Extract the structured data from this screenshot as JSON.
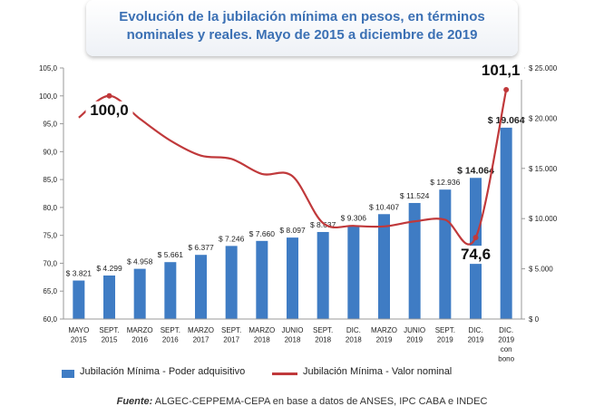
{
  "title": {
    "line1": "Evolución de la jubilación mínima en pesos, en términos",
    "line2": "nominales y reales. Mayo de 2015 a diciembre de 2019"
  },
  "chart_data": {
    "type": "bar+line",
    "categories": [
      [
        "MAYO",
        "2015"
      ],
      [
        "SEPT.",
        "2015"
      ],
      [
        "MARZO",
        "2016"
      ],
      [
        "SEPT.",
        "2016"
      ],
      [
        "MARZO",
        "2017"
      ],
      [
        "SEPT.",
        "2017"
      ],
      [
        "MARZO",
        "2018"
      ],
      [
        "JUNIO",
        "2018"
      ],
      [
        "SEPT.",
        "2018"
      ],
      [
        "DIC.",
        "2018"
      ],
      [
        "MARZO",
        "2019"
      ],
      [
        "JUNIO",
        "2019"
      ],
      [
        "SEPT.",
        "2019"
      ],
      [
        "DIC.",
        "2019"
      ],
      [
        "DIC.",
        "2019",
        "con",
        "bono"
      ]
    ],
    "left_axis": {
      "min": 60,
      "max": 105,
      "step": 5,
      "tick_labels": [
        "60,0",
        "65,0",
        "70,0",
        "75,0",
        "80,0",
        "85,0",
        "90,0",
        "95,0",
        "100,0",
        "105,0"
      ]
    },
    "right_axis": {
      "min": 0,
      "max": 25000,
      "step": 5000,
      "tick_labels": [
        "$ 0",
        "$ 5.000",
        "$ 10.000",
        "$ 15.000",
        "$ 20.000",
        "$ 25.000"
      ]
    },
    "series": [
      {
        "name": "Jubilación Mínima - Poder adquisitivo",
        "kind": "bar",
        "axis": "left",
        "color": "#3f7cc4",
        "values": [
          66.9,
          67.8,
          69.0,
          70.2,
          71.5,
          73.1,
          74.0,
          74.6,
          75.6,
          76.8,
          78.8,
          80.8,
          83.2,
          85.3,
          94.3
        ],
        "labels": [
          "$ 3.821",
          "$ 4.299",
          "$ 4.958",
          "$ 5.661",
          "$ 6.377",
          "$ 7.246",
          "$ 7.660",
          "$ 8.097",
          "$ 8.637",
          "$ 9.306",
          "$ 10.407",
          "$ 11.524",
          "$ 12.936",
          "$ 14.064",
          "$ 19.064"
        ]
      },
      {
        "name": "Jubilación Mínima - Valor nominal",
        "kind": "line",
        "axis": "left",
        "color": "#c0393b",
        "values": [
          96.1,
          100.0,
          95.9,
          92.0,
          89.3,
          88.7,
          86.0,
          85.6,
          77.2,
          76.7,
          76.6,
          77.5,
          77.8,
          74.6,
          101.1
        ],
        "callouts": [
          {
            "index": 1,
            "text": "100,0"
          },
          {
            "index": 13,
            "text": "74,6"
          },
          {
            "index": 14,
            "text": "101,1"
          }
        ]
      }
    ],
    "legend_position": "bottom",
    "grid": false
  },
  "legend": {
    "bar_label": "Jubilación Mínima - Poder adquisitivo",
    "line_label": "Jubilación Mínima - Valor nominal",
    "bar_color": "#3f7cc4",
    "line_color": "#c0393b"
  },
  "source": {
    "label": "Fuente:",
    "text": "ALGEC-CEPPEMA-CEPA en base a datos de ANSES, IPC CABA e INDEC"
  }
}
